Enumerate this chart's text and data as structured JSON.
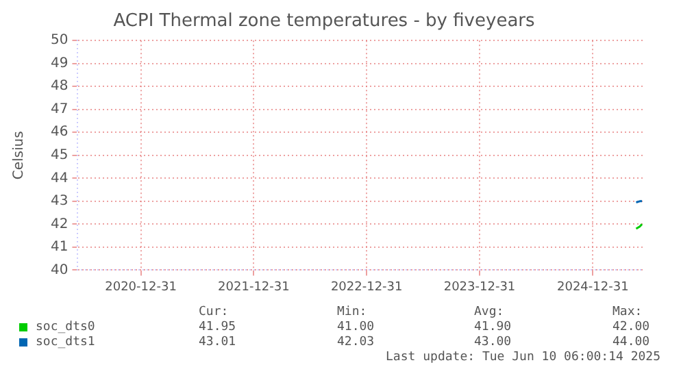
{
  "chart_data": {
    "type": "line",
    "title": "ACPI Thermal zone temperatures - by fiveyears",
    "ylabel": "Celsius",
    "x": [
      "2025-05-20",
      "2025-06-01",
      "2025-06-08"
    ],
    "series": [
      {
        "name": "soc_dts0",
        "color": "#00cc00",
        "values": [
          41.8,
          41.9,
          42.0
        ]
      },
      {
        "name": "soc_dts1",
        "color": "#0066b3",
        "values": [
          42.95,
          43.0,
          43.0
        ]
      }
    ],
    "xlim": [
      "2020-06-10",
      "2025-06-10"
    ],
    "xticks": [
      "2020-12-31",
      "2021-12-31",
      "2022-12-31",
      "2023-12-31",
      "2024-12-31"
    ],
    "ylim": [
      40,
      50
    ],
    "yticks": [
      40,
      41,
      42,
      43,
      44,
      45,
      46,
      47,
      48,
      49,
      50
    ],
    "grid": true,
    "legend": "bottom left",
    "marker": "none",
    "annotations": [
      "Cur:",
      "Min:",
      "Avg:",
      "Max:",
      "41.95",
      "41.00",
      "41.90",
      "42.00",
      "43.01",
      "42.03",
      "43.00",
      "44.00",
      "Last update: Tue Jun 10 06:00:14 2025"
    ]
  }
}
